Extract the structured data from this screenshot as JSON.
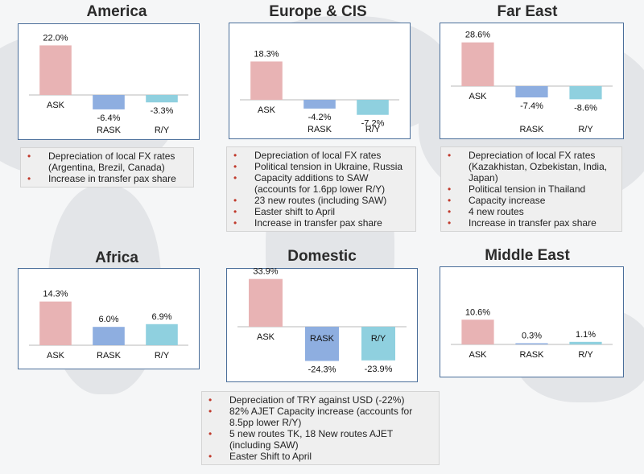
{
  "colors": {
    "ask": "#e8b3b4",
    "rask": "#8eaee0",
    "ry": "#8fd0df",
    "bullet": "#c0392b",
    "panel_border": "#4a6e9a"
  },
  "chart_data": [
    {
      "type": "bar",
      "title": "America",
      "categories": [
        "ASK",
        "RASK",
        "R/Y"
      ],
      "values": [
        22.0,
        -6.4,
        -3.3
      ],
      "labels": [
        "22.0%",
        "-6.4%",
        "-3.3%"
      ]
    },
    {
      "type": "bar",
      "title": "Europe & CIS",
      "categories": [
        "ASK",
        "RASK",
        "R/Y"
      ],
      "values": [
        18.3,
        -4.2,
        -7.2
      ],
      "labels": [
        "18.3%",
        "-4.2%",
        "-7.2%"
      ]
    },
    {
      "type": "bar",
      "title": "Far East",
      "categories": [
        "ASK",
        "RASK",
        "R/Y"
      ],
      "values": [
        28.6,
        -7.4,
        -8.6
      ],
      "labels": [
        "28.6%",
        "-7.4%",
        "-8.6%"
      ]
    },
    {
      "type": "bar",
      "title": "Africa",
      "categories": [
        "ASK",
        "RASK",
        "R/Y"
      ],
      "values": [
        14.3,
        6.0,
        6.9
      ],
      "labels": [
        "14.3%",
        "6.0%",
        "6.9%"
      ]
    },
    {
      "type": "bar",
      "title": "Domestic",
      "categories": [
        "ASK",
        "RASK",
        "R/Y"
      ],
      "values": [
        33.9,
        -24.3,
        -23.9
      ],
      "labels": [
        "33.9%",
        "-24.3%",
        "-23.9%"
      ]
    },
    {
      "type": "bar",
      "title": "Middle East",
      "categories": [
        "ASK",
        "RASK",
        "R/Y"
      ],
      "values": [
        10.6,
        0.3,
        1.1
      ],
      "labels": [
        "10.6%",
        "0.3%",
        "1.1%"
      ]
    }
  ],
  "notes": {
    "america": [
      "Depreciation of local FX rates (Argentina, Brezil, Canada)",
      "Increase in transfer pax share"
    ],
    "europe": [
      "Depreciation of local FX rates",
      "Political tension in Ukraine, Russia",
      "Capacity additions to SAW (accounts for 1.6pp lower R/Y)",
      "23 new routes (including SAW)",
      "Easter shift to April",
      "Increase in transfer pax share"
    ],
    "fareast": [
      "Depreciation of local FX rates (Kazakhistan, Ozbekistan, India, Japan)",
      "Political tension in Thailand",
      "Capacity increase",
      "4 new routes",
      "Increase in transfer pax share"
    ],
    "domestic": [
      "Depreciation of TRY against USD (-22%)",
      "82% AJET Capacity increase (accounts for 8.5pp lower R/Y)",
      "5 new routes TK, 18 New routes AJET (including SAW)",
      "Easter Shift to April"
    ]
  }
}
